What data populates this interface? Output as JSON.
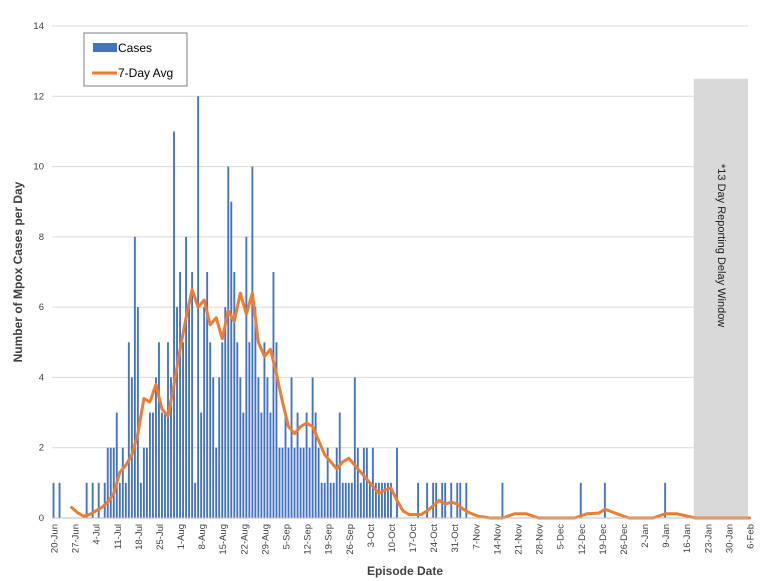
{
  "chart_data": {
    "type": "bar",
    "xlabel": "Episode Date",
    "ylabel": "Number of Mpox Cases per Day",
    "ylim": [
      0,
      14
    ],
    "yticks": [
      0,
      2,
      4,
      6,
      8,
      10,
      12,
      14
    ],
    "grid": "horizontal",
    "legend_position": "top-left",
    "colors": {
      "cases": "#4472C4",
      "avg": "#ED7D31",
      "window": "#D9D9D9",
      "grid": "#D9D9D9"
    },
    "x_start": "2022-06-20",
    "x_end": "2023-02-06",
    "xtick_labels": [
      "20-Jun",
      "27-Jun",
      "4-Jul",
      "11-Jul",
      "18-Jul",
      "25-Jul",
      "1-Aug",
      "8-Aug",
      "15-Aug",
      "22-Aug",
      "29-Aug",
      "5-Sep",
      "12-Sep",
      "19-Sep",
      "26-Sep",
      "3-Oct",
      "10-Oct",
      "17-Oct",
      "24-Oct",
      "31-Oct",
      "7-Nov",
      "14-Nov",
      "21-Nov",
      "28-Nov",
      "5-Dec",
      "12-Dec",
      "19-Dec",
      "26-Dec",
      "2-Jan",
      "9-Jan",
      "16-Jan",
      "23-Jan",
      "30-Jan",
      "6-Feb"
    ],
    "reporting_window": {
      "label": "*13 Day Reporting Delay Window",
      "start": "2023-01-19",
      "end": "2023-02-06",
      "ymax": 12.5
    },
    "series": [
      {
        "name": "Cases",
        "type": "bar",
        "x": [
          "2022-06-20",
          "2022-06-22",
          "2022-07-01",
          "2022-07-03",
          "2022-07-05",
          "2022-07-07",
          "2022-07-08",
          "2022-07-09",
          "2022-07-10",
          "2022-07-11",
          "2022-07-12",
          "2022-07-13",
          "2022-07-14",
          "2022-07-15",
          "2022-07-16",
          "2022-07-17",
          "2022-07-18",
          "2022-07-19",
          "2022-07-20",
          "2022-07-21",
          "2022-07-22",
          "2022-07-23",
          "2022-07-24",
          "2022-07-25",
          "2022-07-26",
          "2022-07-27",
          "2022-07-28",
          "2022-07-29",
          "2022-07-30",
          "2022-07-31",
          "2022-08-01",
          "2022-08-02",
          "2022-08-03",
          "2022-08-04",
          "2022-08-05",
          "2022-08-06",
          "2022-08-07",
          "2022-08-08",
          "2022-08-09",
          "2022-08-10",
          "2022-08-11",
          "2022-08-12",
          "2022-08-13",
          "2022-08-14",
          "2022-08-15",
          "2022-08-16",
          "2022-08-17",
          "2022-08-18",
          "2022-08-19",
          "2022-08-20",
          "2022-08-21",
          "2022-08-22",
          "2022-08-23",
          "2022-08-24",
          "2022-08-25",
          "2022-08-26",
          "2022-08-27",
          "2022-08-28",
          "2022-08-29",
          "2022-08-30",
          "2022-08-31",
          "2022-09-01",
          "2022-09-02",
          "2022-09-03",
          "2022-09-04",
          "2022-09-05",
          "2022-09-06",
          "2022-09-07",
          "2022-09-08",
          "2022-09-09",
          "2022-09-10",
          "2022-09-11",
          "2022-09-12",
          "2022-09-13",
          "2022-09-14",
          "2022-09-15",
          "2022-09-16",
          "2022-09-17",
          "2022-09-18",
          "2022-09-19",
          "2022-09-20",
          "2022-09-21",
          "2022-09-22",
          "2022-09-23",
          "2022-09-24",
          "2022-09-25",
          "2022-09-26",
          "2022-09-27",
          "2022-09-28",
          "2022-09-29",
          "2022-09-30",
          "2022-10-01",
          "2022-10-02",
          "2022-10-03",
          "2022-10-04",
          "2022-10-05",
          "2022-10-06",
          "2022-10-07",
          "2022-10-08",
          "2022-10-09",
          "2022-10-10",
          "2022-10-12",
          "2022-10-19",
          "2022-10-22",
          "2022-10-24",
          "2022-10-25",
          "2022-10-27",
          "2022-10-28",
          "2022-10-30",
          "2022-11-01",
          "2022-11-02",
          "2022-11-04",
          "2022-11-16",
          "2022-12-12",
          "2022-12-20",
          "2023-01-09"
        ],
        "values": [
          1,
          1,
          1,
          1,
          1,
          1,
          2,
          2,
          2,
          3,
          1,
          2,
          1,
          5,
          4,
          8,
          6,
          1,
          2,
          2,
          3,
          3,
          4,
          5,
          3,
          3,
          5,
          4,
          11,
          6,
          7,
          5,
          8,
          6,
          7,
          1,
          12,
          3,
          6,
          7,
          5,
          4,
          2,
          4,
          5,
          6,
          10,
          9,
          7,
          5,
          4,
          3,
          8,
          5,
          10,
          6,
          4,
          3,
          5,
          4,
          3,
          7,
          5,
          2,
          2,
          3,
          2,
          4,
          2,
          3,
          2,
          2,
          3,
          2,
          4,
          3,
          2,
          1,
          1,
          2,
          1,
          1,
          2,
          3,
          1,
          1,
          1,
          1,
          4,
          2,
          1,
          2,
          2,
          1,
          2,
          1,
          1,
          1,
          1,
          1,
          1,
          2,
          1,
          1,
          1,
          1,
          1,
          1,
          1,
          1,
          1,
          1,
          1,
          1,
          1,
          1
        ]
      },
      {
        "name": "7-Day Avg",
        "type": "line",
        "x": [
          "2022-06-26",
          "2022-06-28",
          "2022-06-30",
          "2022-07-02",
          "2022-07-04",
          "2022-07-06",
          "2022-07-08",
          "2022-07-10",
          "2022-07-12",
          "2022-07-14",
          "2022-07-16",
          "2022-07-18",
          "2022-07-20",
          "2022-07-22",
          "2022-07-24",
          "2022-07-26",
          "2022-07-28",
          "2022-07-30",
          "2022-08-01",
          "2022-08-03",
          "2022-08-05",
          "2022-08-07",
          "2022-08-09",
          "2022-08-11",
          "2022-08-13",
          "2022-08-15",
          "2022-08-17",
          "2022-08-19",
          "2022-08-21",
          "2022-08-23",
          "2022-08-25",
          "2022-08-27",
          "2022-08-29",
          "2022-08-31",
          "2022-09-02",
          "2022-09-04",
          "2022-09-06",
          "2022-09-08",
          "2022-09-10",
          "2022-09-12",
          "2022-09-14",
          "2022-09-16",
          "2022-09-18",
          "2022-09-20",
          "2022-09-22",
          "2022-09-24",
          "2022-09-26",
          "2022-09-28",
          "2022-09-30",
          "2022-10-02",
          "2022-10-04",
          "2022-10-06",
          "2022-10-08",
          "2022-10-10",
          "2022-10-12",
          "2022-10-14",
          "2022-10-16",
          "2022-10-18",
          "2022-10-20",
          "2022-10-22",
          "2022-10-24",
          "2022-10-26",
          "2022-10-28",
          "2022-10-30",
          "2022-11-01",
          "2022-11-03",
          "2022-11-05",
          "2022-11-08",
          "2022-11-12",
          "2022-11-16",
          "2022-11-20",
          "2022-11-24",
          "2022-11-28",
          "2022-12-02",
          "2022-12-06",
          "2022-12-10",
          "2022-12-14",
          "2022-12-18",
          "2022-12-20",
          "2022-12-24",
          "2022-12-28",
          "2023-01-01",
          "2023-01-05",
          "2023-01-09",
          "2023-01-13",
          "2023-01-19",
          "2023-02-06"
        ],
        "values": [
          0.3,
          0.15,
          0.05,
          0.1,
          0.2,
          0.3,
          0.45,
          0.7,
          1.3,
          1.5,
          1.8,
          2.4,
          3.4,
          3.3,
          3.8,
          3.1,
          2.9,
          3.8,
          4.8,
          5.7,
          6.5,
          6.0,
          6.2,
          5.5,
          5.7,
          5.1,
          5.9,
          5.6,
          6.4,
          5.8,
          6.4,
          5.0,
          4.6,
          4.8,
          4.1,
          3.3,
          2.6,
          2.4,
          2.6,
          2.7,
          2.6,
          2.2,
          1.8,
          1.6,
          1.4,
          1.6,
          1.7,
          1.5,
          1.3,
          1.1,
          0.9,
          0.7,
          0.8,
          0.85,
          0.5,
          0.2,
          0.1,
          0.1,
          0.1,
          0.2,
          0.35,
          0.5,
          0.4,
          0.45,
          0.4,
          0.25,
          0.15,
          0.05,
          0.0,
          0.0,
          0.12,
          0.12,
          0.0,
          0.0,
          0.0,
          0.0,
          0.12,
          0.14,
          0.25,
          0.12,
          0.0,
          0.0,
          0.0,
          0.12,
          0.12,
          0.0,
          0.0
        ]
      }
    ]
  }
}
